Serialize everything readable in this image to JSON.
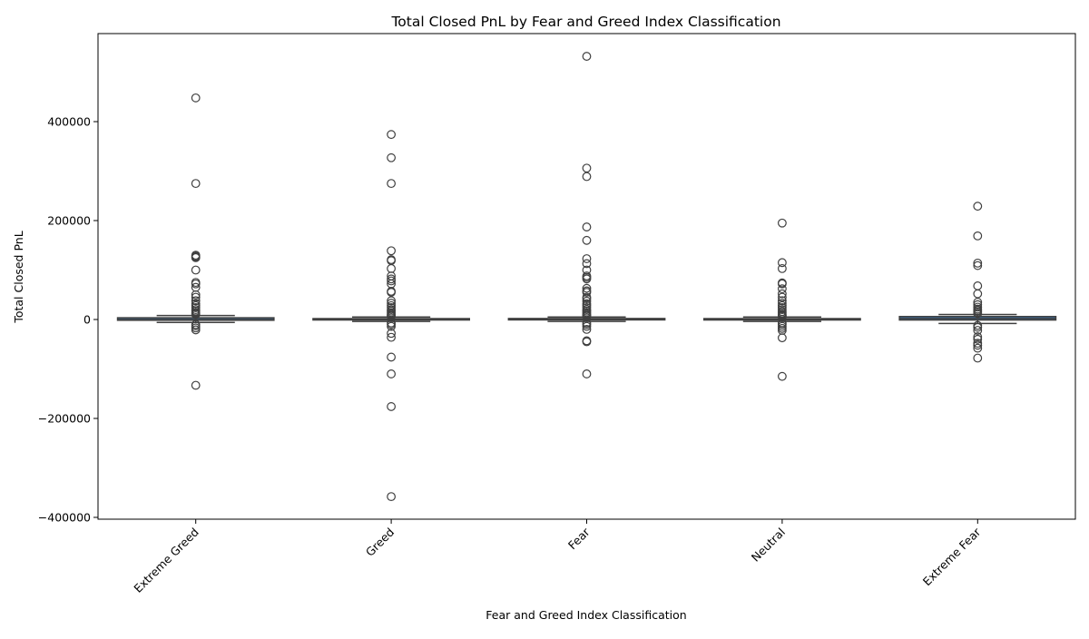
{
  "chart_data": {
    "type": "box",
    "title": "Total Closed PnL by Fear and Greed Index Classification",
    "xlabel": "Fear and Greed Index Classification",
    "ylabel": "Total Closed PnL",
    "categories": [
      "Extreme Greed",
      "Greed",
      "Fear",
      "Neutral",
      "Extreme Fear"
    ],
    "ylim": [
      -405000,
      535000
    ],
    "yticks": [
      -400000,
      -200000,
      0,
      200000,
      400000
    ],
    "ytick_labels": [
      "−400000",
      "−200000",
      "0",
      "200000",
      "400000"
    ],
    "grid": false,
    "colors": {
      "box_fill": "#3b75af",
      "line": "#3f3f3f"
    },
    "boxes": [
      {
        "category": "Extreme Greed",
        "whislo": -6000,
        "q1": -1500,
        "med": 0,
        "q3": 3500,
        "whishi": 8000,
        "fliers": [
          448000,
          275000,
          130000,
          128000,
          126000,
          125000,
          100000,
          75000,
          72000,
          65000,
          50000,
          45000,
          38000,
          32000,
          28000,
          24000,
          20000,
          17000,
          14000,
          12000,
          10000,
          -10000,
          -13000,
          -17000,
          -21000,
          -133000
        ]
      },
      {
        "category": "Greed",
        "whislo": -4000,
        "q1": -700,
        "med": 0,
        "q3": 1800,
        "whishi": 5000,
        "fliers": [
          374000,
          327000,
          275000,
          139000,
          121000,
          119000,
          103000,
          88000,
          82000,
          78000,
          72000,
          57000,
          55000,
          38000,
          33000,
          28000,
          24000,
          20000,
          17000,
          14000,
          11000,
          9000,
          7000,
          -7000,
          -10000,
          -14000,
          -28000,
          -36000,
          -76000,
          -110000,
          -176000,
          -358000
        ]
      },
      {
        "category": "Fear",
        "whislo": -4000,
        "q1": -600,
        "med": 0,
        "q3": 2000,
        "whishi": 5000,
        "fliers": [
          532000,
          306000,
          289000,
          187000,
          160000,
          123000,
          113000,
          100000,
          88000,
          85000,
          82000,
          63000,
          58000,
          55000,
          45000,
          42000,
          37000,
          32000,
          28000,
          24000,
          20000,
          17000,
          14000,
          11000,
          9000,
          7000,
          -7000,
          -10000,
          -14000,
          -20000,
          -43000,
          -45000,
          -110000
        ]
      },
      {
        "category": "Neutral",
        "whislo": -4000,
        "q1": -500,
        "med": 0,
        "q3": 1800,
        "whishi": 5000,
        "fliers": [
          195000,
          115000,
          103000,
          74000,
          72000,
          62000,
          52000,
          45000,
          38000,
          33000,
          28000,
          24000,
          20000,
          16000,
          13000,
          10000,
          8000,
          6000,
          -7000,
          -10000,
          -14000,
          -18000,
          -22000,
          -37000,
          -115000
        ]
      },
      {
        "category": "Extreme Fear",
        "whislo": -8000,
        "q1": -1000,
        "med": 2000,
        "q3": 6000,
        "whishi": 10000,
        "fliers": [
          229000,
          169000,
          114000,
          109000,
          68000,
          52000,
          35000,
          30000,
          25000,
          21000,
          18000,
          15000,
          12000,
          -12000,
          -16000,
          -22000,
          -35000,
          -40000,
          -48000,
          -52000,
          -58000,
          -78000
        ]
      }
    ]
  }
}
